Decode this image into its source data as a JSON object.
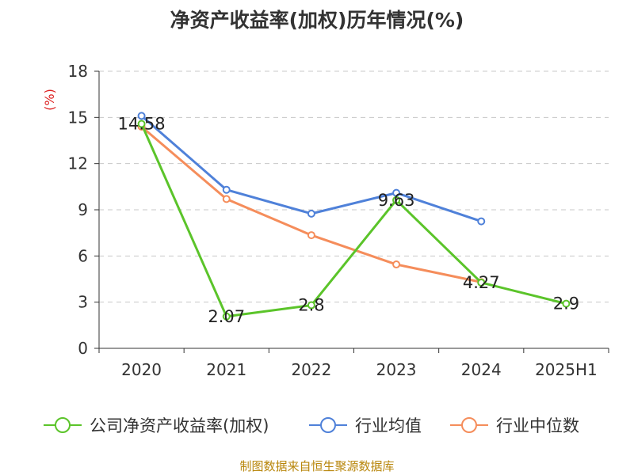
{
  "title": "净资产收益率(加权)历年情况(%)",
  "source": "制图数据来自恒生聚源数据库",
  "chart_data": {
    "type": "line",
    "title": "净资产收益率(加权)历年情况(%)",
    "ylabel": "(%)",
    "xlabel": "",
    "categories": [
      "2020",
      "2021",
      "2022",
      "2023",
      "2024",
      "2025H1"
    ],
    "ylim": [
      0,
      18
    ],
    "yticks": [
      0,
      3,
      6,
      9,
      12,
      15,
      18
    ],
    "grid": true,
    "legend_position": "bottom",
    "series": [
      {
        "name": "公司净资产收益率(加权)",
        "color": "#5bc42a",
        "values": [
          14.58,
          2.07,
          2.8,
          9.63,
          4.27,
          2.9
        ],
        "labels": [
          "14.58",
          "2.07",
          "2.8",
          "9.63",
          "4.27",
          "2.9"
        ]
      },
      {
        "name": "行业均值",
        "color": "#4f81d9",
        "values": [
          15.1,
          10.3,
          8.75,
          10.1,
          8.25,
          null
        ]
      },
      {
        "name": "行业中位数",
        "color": "#f58d5b",
        "values": [
          14.4,
          9.7,
          7.35,
          5.45,
          4.3,
          null
        ]
      }
    ]
  }
}
